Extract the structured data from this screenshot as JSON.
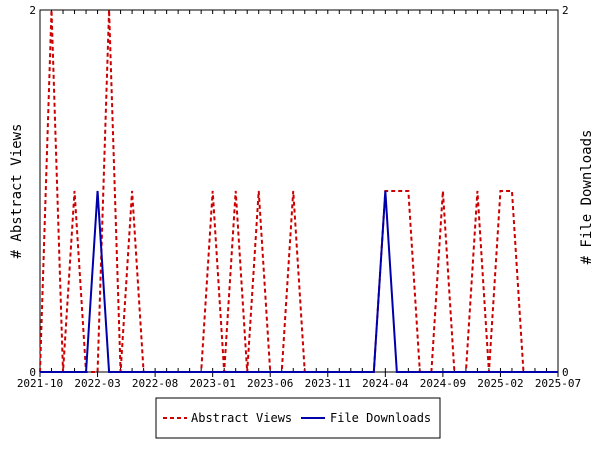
{
  "chart_data": {
    "type": "line",
    "ylabel_left": "# Abstract Views",
    "ylabel_right": "# File Downloads",
    "ylim": [
      0,
      2
    ],
    "y_ticks": [
      "0",
      "2"
    ],
    "x_tick_labels": [
      "2021-10",
      "2022-03",
      "2022-08",
      "2023-01",
      "2023-06",
      "2023-11",
      "2024-04",
      "2024-09",
      "2025-02",
      "2025-07"
    ],
    "legend": {
      "placement": "bottom"
    },
    "series": [
      {
        "name": "Abstract Views",
        "color": "#cc0000",
        "style": "dashed",
        "x": [
          "2021-10",
          "2021-11",
          "2021-12",
          "2022-01",
          "2022-02",
          "2022-03",
          "2022-04",
          "2022-05",
          "2022-06",
          "2022-07",
          "2022-08",
          "2022-09",
          "2022-10",
          "2022-11",
          "2022-12",
          "2023-01",
          "2023-02",
          "2023-03",
          "2023-04",
          "2023-05",
          "2023-06",
          "2023-07",
          "2023-08",
          "2023-09",
          "2023-10",
          "2023-11",
          "2023-12",
          "2024-01",
          "2024-02",
          "2024-03",
          "2024-04",
          "2024-05",
          "2024-06",
          "2024-07",
          "2024-08",
          "2024-09",
          "2024-10",
          "2024-11",
          "2024-12",
          "2025-01",
          "2025-02",
          "2025-03",
          "2025-04",
          "2025-05",
          "2025-06",
          "2025-07"
        ],
        "values": [
          0,
          2,
          0,
          1,
          0,
          0,
          2,
          0,
          1,
          0,
          0,
          0,
          0,
          0,
          0,
          1,
          0,
          1,
          0,
          1,
          0,
          0,
          1,
          0,
          0,
          0,
          0,
          0,
          0,
          0,
          1,
          1,
          1,
          0,
          0,
          1,
          0,
          0,
          1,
          0,
          1,
          1,
          0,
          0,
          0,
          0
        ]
      },
      {
        "name": "File Downloads",
        "color": "#0000aa",
        "style": "solid",
        "x": [
          "2021-10",
          "2021-11",
          "2021-12",
          "2022-01",
          "2022-02",
          "2022-03",
          "2022-04",
          "2022-05",
          "2022-06",
          "2022-07",
          "2022-08",
          "2022-09",
          "2022-10",
          "2022-11",
          "2022-12",
          "2023-01",
          "2023-02",
          "2023-03",
          "2023-04",
          "2023-05",
          "2023-06",
          "2023-07",
          "2023-08",
          "2023-09",
          "2023-10",
          "2023-11",
          "2023-12",
          "2024-01",
          "2024-02",
          "2024-03",
          "2024-04",
          "2024-05",
          "2024-06",
          "2024-07",
          "2024-08",
          "2024-09",
          "2024-10",
          "2024-11",
          "2024-12",
          "2025-01",
          "2025-02",
          "2025-03",
          "2025-04",
          "2025-05",
          "2025-06",
          "2025-07"
        ],
        "values": [
          0,
          0,
          0,
          0,
          0,
          1,
          0,
          0,
          0,
          0,
          0,
          0,
          0,
          0,
          0,
          0,
          0,
          0,
          0,
          0,
          0,
          0,
          0,
          0,
          0,
          0,
          0,
          0,
          0,
          0,
          1,
          0,
          0,
          0,
          0,
          0,
          0,
          0,
          0,
          0,
          0,
          0,
          0,
          0,
          0,
          0
        ]
      }
    ]
  }
}
